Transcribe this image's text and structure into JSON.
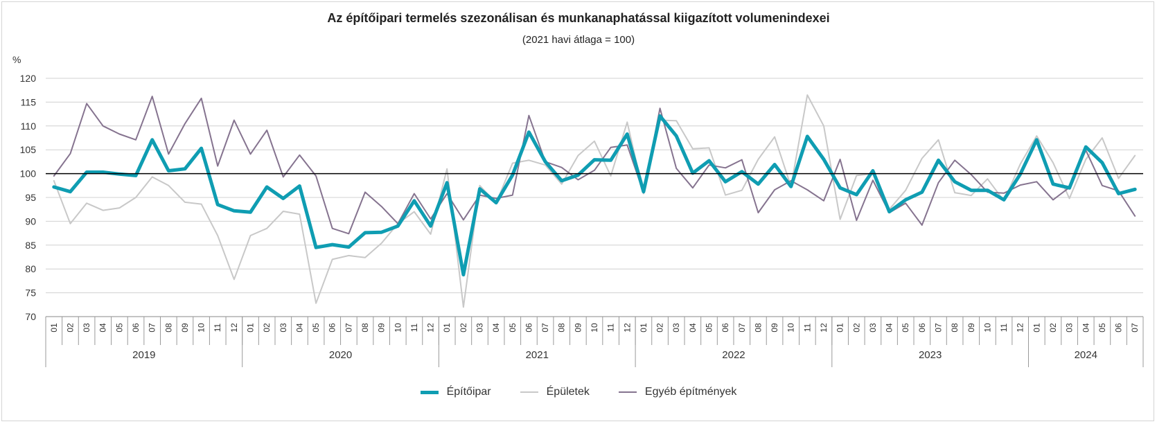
{
  "chart_data": {
    "type": "line",
    "title": "Az építőipari termelés szezonálisan és munkanaphatással kiigazított volumenindexei",
    "subtitle": "(2021 havi átlaga = 100)",
    "ylabel": "%",
    "ylim": [
      70,
      120
    ],
    "yticks": [
      70,
      75,
      80,
      85,
      90,
      95,
      100,
      105,
      110,
      115,
      120
    ],
    "reference_line": 100,
    "years": [
      {
        "label": "2019",
        "months": 12
      },
      {
        "label": "2020",
        "months": 12
      },
      {
        "label": "2021",
        "months": 12
      },
      {
        "label": "2022",
        "months": 12
      },
      {
        "label": "2023",
        "months": 12
      },
      {
        "label": "2024",
        "months": 7
      }
    ],
    "month_labels": [
      "01",
      "02",
      "03",
      "04",
      "05",
      "06",
      "07",
      "08",
      "09",
      "10",
      "11",
      "12"
    ],
    "series": [
      {
        "name": "Épületek",
        "color": "#c8c8c8",
        "values": [
          98.5,
          89.5,
          93.8,
          92.3,
          92.8,
          95,
          99.3,
          97.5,
          94,
          93.6,
          87,
          77.8,
          87,
          88.5,
          92.1,
          91.5,
          72.8,
          82,
          82.8,
          82.4,
          85.4,
          89.5,
          92,
          87.3,
          101,
          72,
          97.5,
          93.8,
          102.2,
          102.8,
          101.8,
          97.8,
          103.8,
          106.8,
          99.5,
          110.8,
          95.8,
          111.2,
          111.1,
          105.2,
          105.4,
          95.5,
          96.5,
          103,
          107.7,
          97.3,
          116.5,
          110,
          90.4,
          99.6,
          100,
          92.5,
          96.5,
          103.2,
          107.1,
          96,
          95.4,
          98.9,
          94.3,
          102,
          107.9,
          102.3,
          94.8,
          103,
          107.5,
          99,
          103.8
        ]
      },
      {
        "name": "Egyéb építmények",
        "color": "#85738f",
        "values": [
          99.5,
          104.2,
          114.7,
          110,
          108.3,
          107.1,
          116.2,
          104.1,
          110.5,
          115.8,
          101.6,
          111.2,
          104.1,
          109.1,
          99.3,
          103.9,
          99.5,
          88.5,
          87.4,
          96.1,
          93.1,
          89.5,
          95.8,
          90.5,
          95.8,
          90.3,
          95.5,
          94.8,
          95.5,
          112.2,
          102.5,
          101.3,
          98.7,
          100.7,
          105.5,
          106,
          96,
          113.7,
          101.1,
          97,
          101.8,
          101.2,
          102.9,
          91.8,
          96.6,
          98.5,
          96.6,
          94.3,
          103,
          90.2,
          98.6,
          91.8,
          93.8,
          89.2,
          98.1,
          102.8,
          99.8,
          96.1,
          95.9,
          97.6,
          98.3,
          94.5,
          97.1,
          104.9,
          97.5,
          96.4,
          91.1
        ]
      },
      {
        "name": "Építőipar",
        "color": "#0f9db2",
        "values": [
          97.2,
          96.2,
          100.3,
          100.3,
          99.9,
          99.6,
          107.1,
          100.6,
          101,
          105.3,
          93.5,
          92.2,
          91.9,
          97.2,
          94.8,
          97.4,
          84.5,
          85.1,
          84.6,
          87.6,
          87.7,
          89,
          94.3,
          89,
          98.1,
          78.8,
          96.8,
          93.9,
          99.7,
          108.7,
          102.5,
          98.5,
          99.7,
          102.9,
          102.8,
          108.3,
          96.2,
          112.1,
          107.9,
          100.1,
          102.7,
          98.3,
          100.4,
          97.8,
          101.9,
          97.3,
          107.8,
          103,
          97,
          95.6,
          100.6,
          92,
          94.5,
          96.1,
          102.8,
          98.3,
          96.5,
          96.5,
          94.5,
          99.9,
          107.1,
          97.8,
          97,
          105.6,
          102.3,
          95.8,
          96.7
        ]
      }
    ],
    "legend": [
      {
        "label": "Építőipar",
        "color": "#0f9db2",
        "width": 5
      },
      {
        "label": "Épületek",
        "color": "#c8c8c8",
        "width": 2
      },
      {
        "label": "Egyéb építmények",
        "color": "#85738f",
        "width": 2
      }
    ],
    "legend_position": "bottom"
  }
}
